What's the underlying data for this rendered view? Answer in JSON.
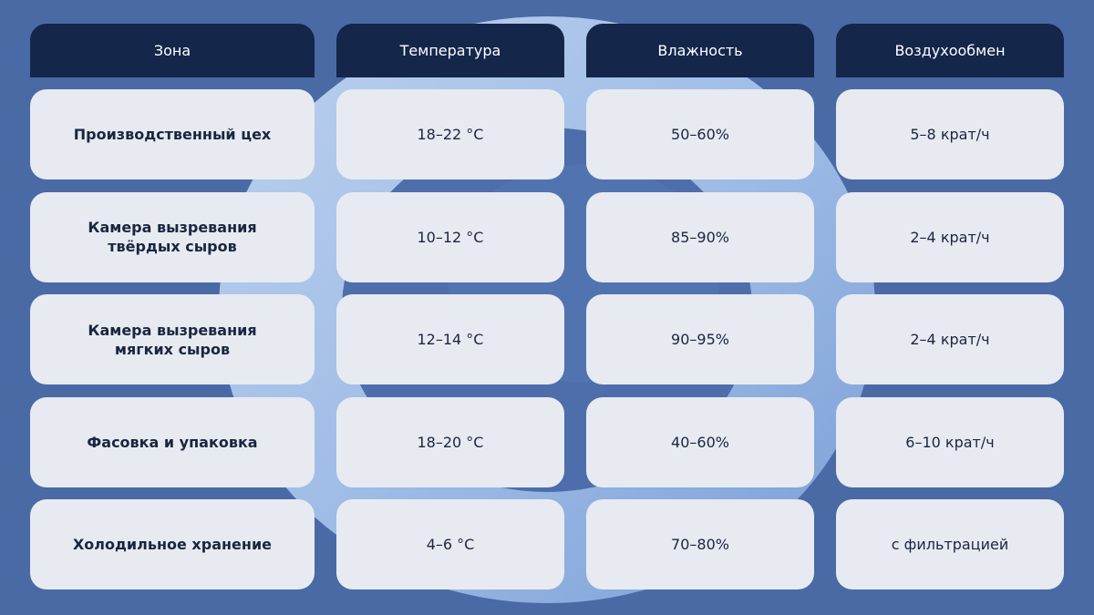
{
  "table": {
    "headers": [
      "Зона",
      "Температура",
      "Влажность",
      "Воздухообмен"
    ],
    "rows": [
      {
        "zone": "Производственный цех",
        "temperature": "18–22 °C",
        "humidity": "50–60%",
        "air_exchange": "5–8 крат/ч"
      },
      {
        "zone": "Камера вызревания\nтвёрдых сыров",
        "temperature": "10–12 °C",
        "humidity": "85–90%",
        "air_exchange": "2–4 крат/ч"
      },
      {
        "zone": "Камера вызревания\nмягких сыров",
        "temperature": "12–14 °C",
        "humidity": "90–95%",
        "air_exchange": "2–4 крат/ч"
      },
      {
        "zone": "Фасовка и упаковка",
        "temperature": "18–20 °C",
        "humidity": "40–60%",
        "air_exchange": "6–10 крат/ч"
      },
      {
        "zone": "Холодильное хранение",
        "temperature": "4–6 °C",
        "humidity": "70–80%",
        "air_exchange": "с фильтрацией"
      }
    ]
  },
  "colors": {
    "background": "#4a6aa6",
    "header": "#14264a",
    "cell": "#e7eaf0",
    "cell_text": "#1a2640"
  }
}
